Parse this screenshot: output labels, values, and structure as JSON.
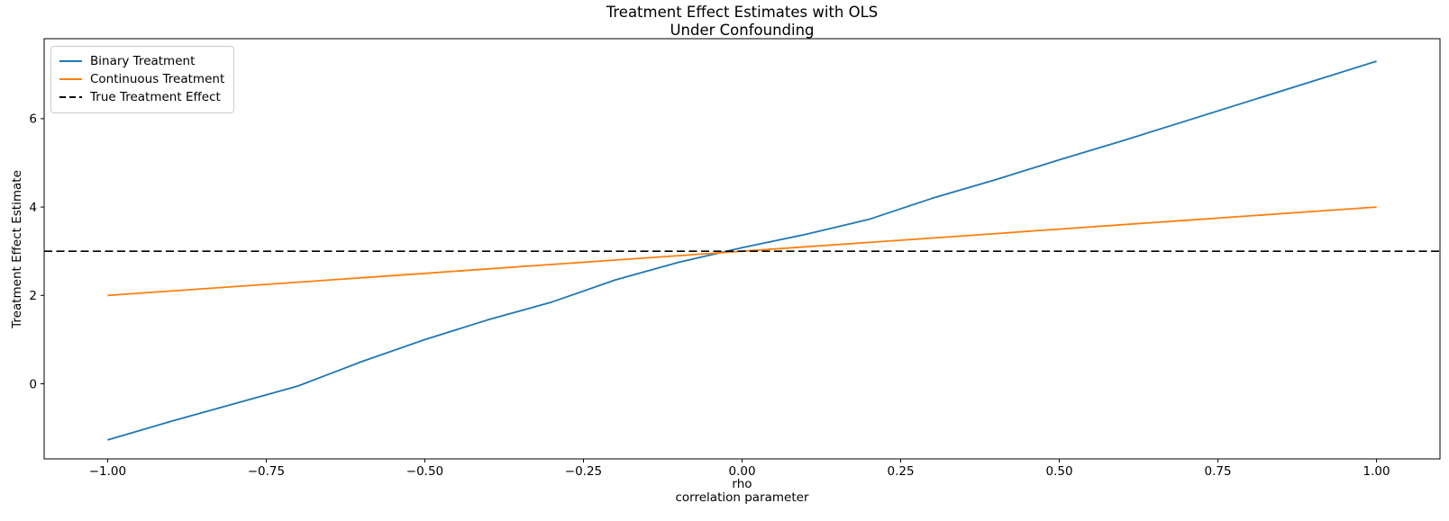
{
  "chart_data": {
    "type": "line",
    "title": "Treatment Effect Estimates with OLS\nUnder Confounding",
    "title_lines": [
      "Treatment Effect Estimates with OLS",
      "Under Confounding"
    ],
    "xlabel": "rho\ncorrelation parameter",
    "xlabel_lines": [
      "rho",
      "correlation parameter"
    ],
    "ylabel": "Treatment Effect Estimate",
    "xlim": [
      -1.1,
      1.1
    ],
    "ylim": [
      -1.7,
      7.81
    ],
    "xticks": [
      -1.0,
      -0.75,
      -0.5,
      -0.25,
      0.0,
      0.25,
      0.5,
      0.75,
      1.0
    ],
    "xtick_labels": [
      "−1.00",
      "−0.75",
      "−0.50",
      "−0.25",
      "0.00",
      "0.25",
      "0.50",
      "0.75",
      "1.00"
    ],
    "yticks": [
      0,
      2,
      4,
      6
    ],
    "ytick_labels": [
      "0",
      "2",
      "4",
      "6"
    ],
    "grid": false,
    "legend_position": "upper left",
    "background_color": "#ffffff",
    "axis_color": "#000000",
    "x": [
      -1.0,
      -0.9,
      -0.8,
      -0.7,
      -0.6,
      -0.5,
      -0.4,
      -0.3,
      -0.2,
      -0.1,
      0.0,
      0.1,
      0.2,
      0.3,
      0.4,
      0.5,
      0.6,
      0.7,
      0.8,
      0.9,
      1.0
    ],
    "series": [
      {
        "name": "Binary Treatment",
        "color": "#1f77b4",
        "line_style": "solid",
        "values": [
          -1.27,
          -0.85,
          -0.45,
          -0.05,
          0.5,
          1.0,
          1.45,
          1.85,
          2.35,
          2.75,
          3.08,
          3.38,
          3.72,
          4.2,
          4.62,
          5.07,
          5.5,
          5.95,
          6.4,
          6.85,
          7.3
        ]
      },
      {
        "name": "Continuous Treatment",
        "color": "#ff7f0e",
        "line_style": "solid",
        "values": [
          2.0,
          2.1,
          2.2,
          2.3,
          2.4,
          2.5,
          2.6,
          2.7,
          2.8,
          2.9,
          3.0,
          3.1,
          3.2,
          3.3,
          3.4,
          3.5,
          3.6,
          3.7,
          3.8,
          3.9,
          4.0
        ]
      },
      {
        "name": "True Treatment Effect",
        "color": "#000000",
        "line_style": "dashed",
        "constant": 3.0
      }
    ]
  }
}
